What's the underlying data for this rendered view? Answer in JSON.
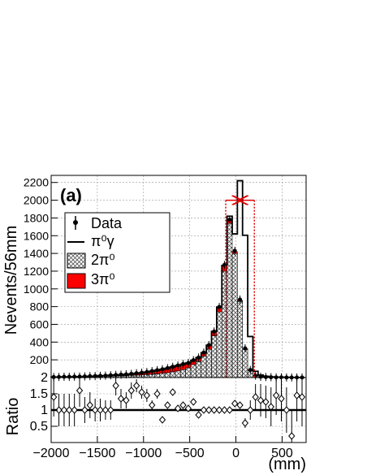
{
  "chart_data": [
    {
      "type": "bar",
      "panel": "main",
      "panel_label": "(a)",
      "ylabel": "Nevents/56mm",
      "xlim": [
        -2000,
        760
      ],
      "ylim": [
        0,
        2280
      ],
      "yticks": [
        200,
        400,
        600,
        800,
        1000,
        1200,
        1400,
        1600,
        1800,
        2000,
        2200
      ],
      "grid": true,
      "legend_position": "top-left",
      "legend": [
        {
          "label": "Data",
          "style": "marker"
        },
        {
          "label": "π⁰γ",
          "style": "line"
        },
        {
          "label": "2π⁰",
          "style": "hatched"
        },
        {
          "label": "3π⁰",
          "style": "red-fill"
        }
      ],
      "bin_width": 56,
      "bins_start": -2000,
      "series": [
        {
          "name": "π⁰γ",
          "values": [
            0,
            0,
            0,
            0,
            0,
            0,
            0,
            0,
            0,
            0,
            0,
            0,
            0,
            0,
            0,
            0,
            0,
            0,
            0,
            0,
            0,
            0,
            0,
            0,
            0,
            0,
            0,
            0,
            0,
            0,
            0,
            0,
            0,
            0,
            50,
            200,
            2160,
            1280,
            380,
            50,
            20,
            10,
            5,
            3,
            2,
            2,
            0,
            0,
            0
          ]
        },
        {
          "name": "2π⁰",
          "values": [
            5,
            6,
            8,
            8,
            9,
            10,
            10,
            12,
            12,
            15,
            16,
            18,
            20,
            20,
            22,
            25,
            28,
            30,
            34,
            38,
            42,
            48,
            55,
            65,
            75,
            90,
            110,
            145,
            180,
            240,
            320,
            470,
            740,
            1200,
            1740,
            1400,
            860,
            320,
            80,
            20,
            8,
            5,
            3,
            2,
            2,
            1,
            1,
            1,
            1
          ]
        },
        {
          "name": "3π⁰",
          "values": [
            0,
            0,
            0,
            0,
            0,
            0,
            2,
            3,
            4,
            5,
            6,
            8,
            10,
            12,
            14,
            16,
            20,
            24,
            28,
            34,
            40,
            45,
            50,
            56,
            60,
            60,
            55,
            50,
            45,
            40,
            45,
            50,
            55,
            65,
            30,
            20,
            10,
            5,
            3,
            1,
            0,
            0,
            0,
            0,
            0,
            0,
            0,
            0,
            0
          ]
        }
      ],
      "data_points": {
        "x": [
          -1972,
          -1916,
          -1860,
          -1804,
          -1748,
          -1692,
          -1636,
          -1580,
          -1524,
          -1468,
          -1412,
          -1356,
          -1300,
          -1244,
          -1188,
          -1132,
          -1076,
          -1020,
          -964,
          -908,
          -852,
          -796,
          -740,
          -684,
          -628,
          -572,
          -516,
          -460,
          -404,
          -348,
          -292,
          -236,
          -180,
          -124,
          -68,
          -12,
          44,
          100,
          156,
          212,
          268,
          324,
          380,
          436,
          492,
          548,
          604,
          660,
          716
        ],
        "y": [
          6,
          7,
          9,
          9,
          10,
          11,
          13,
          16,
          17,
          20,
          22,
          26,
          30,
          33,
          37,
          42,
          49,
          55,
          63,
          73,
          83,
          94,
          106,
          122,
          136,
          152,
          165,
          196,
          226,
          282,
          366,
          520,
          796,
          1270,
          1780,
          1430,
          880,
          330,
          86,
          22,
          9,
          6,
          4,
          2,
          2,
          1,
          1,
          1,
          1
        ]
      },
      "cut_lines": [
        -110,
        200
      ],
      "cut_arrow_y": 2000
    },
    {
      "type": "scatter",
      "panel": "ratio",
      "ylabel": "Ratio",
      "xlabel": "(mm)",
      "xlim": [
        -2000,
        760
      ],
      "ylim": [
        0,
        2
      ],
      "yticks": [
        0.5,
        1,
        1.5,
        2
      ],
      "xticks": [
        -2000,
        -1500,
        -1000,
        -500,
        0,
        500
      ],
      "reference_line": 1,
      "x": [
        -1972,
        -1916,
        -1860,
        -1804,
        -1748,
        -1692,
        -1636,
        -1580,
        -1524,
        -1468,
        -1412,
        -1356,
        -1300,
        -1244,
        -1188,
        -1132,
        -1076,
        -1020,
        -964,
        -908,
        -852,
        -796,
        -740,
        -684,
        -628,
        -572,
        -516,
        -460,
        -404,
        -348,
        -292,
        -236,
        -180,
        -124,
        -68,
        -12,
        44,
        100,
        156,
        212,
        268,
        324,
        380,
        436,
        492,
        548,
        604,
        660,
        716
      ],
      "y": [
        1.4,
        1.0,
        1.0,
        1.0,
        1.0,
        1.6,
        1.0,
        1.15,
        1.0,
        1.0,
        1.0,
        1.0,
        1.75,
        1.35,
        1.3,
        1.6,
        1.75,
        1.55,
        1.45,
        1.15,
        1.5,
        0.7,
        1.15,
        1.55,
        1.05,
        1.15,
        1.05,
        1.25,
        0.85,
        1.0,
        1.0,
        1.0,
        1.0,
        1.0,
        1.0,
        1.2,
        1.15,
        0.6,
        1.0,
        1.4,
        1.3,
        1.25,
        1.1,
        1.45,
        1.35,
        1.0,
        0.2,
        1.45,
        1.4
      ],
      "yerr": [
        0.6,
        0.5,
        0.5,
        0.5,
        0.5,
        0.5,
        0.4,
        0.4,
        0.35,
        0.35,
        0.3,
        0.3,
        0.3,
        0.3,
        0.25,
        0.25,
        0.2,
        0.2,
        0.2,
        0.15,
        0.15,
        0.1,
        0.1,
        0.1,
        0.08,
        0.07,
        0.06,
        0.05,
        0.04,
        0.03,
        0.03,
        0.02,
        0.02,
        0.02,
        0.02,
        0.05,
        0.1,
        0.15,
        0.3,
        0.4,
        0.5,
        0.5,
        0.6,
        0.6,
        0.7,
        0.7,
        0.8,
        0.8,
        0.9
      ]
    }
  ]
}
